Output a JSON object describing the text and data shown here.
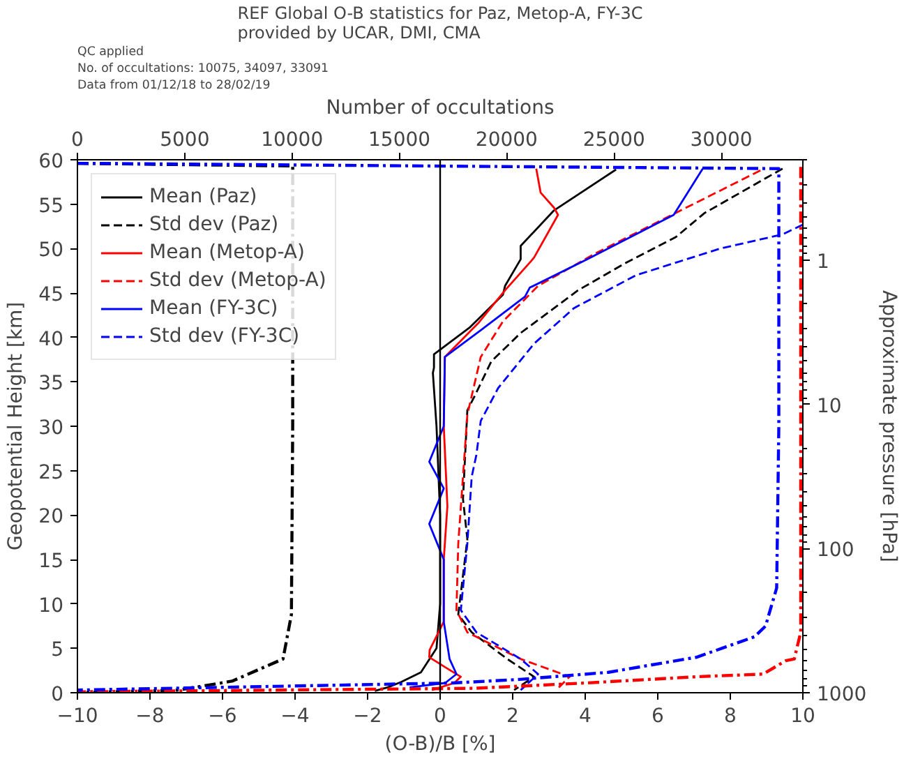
{
  "chart_data": {
    "type": "line",
    "title": "REF Global O-B statistics for Paz, Metop-A, FY-3C\nprovided by UCAR, DMI, CMA",
    "annotations": [
      "QC applied",
      "No. of occultations: 10075, 34097, 33091",
      "Data from 01/12/18 to 28/02/19"
    ],
    "xlabel": "(O-B)/B [%]",
    "ylabel": "Geopotential Height [km]",
    "x2label": "Number of occultations",
    "y2label": "Approximate pressure [hPa]",
    "xlim": [
      -10,
      10
    ],
    "xticks": [
      -10,
      -8,
      -6,
      -4,
      -2,
      0,
      2,
      4,
      6,
      8,
      10
    ],
    "ylim": [
      0,
      60
    ],
    "yticks": [
      0,
      5,
      10,
      15,
      20,
      25,
      30,
      35,
      40,
      45,
      50,
      55,
      60
    ],
    "x2lim": [
      0,
      33800
    ],
    "x2ticks": [
      0,
      5000,
      10000,
      15000,
      20000,
      25000,
      30000
    ],
    "y2lim": [
      1000,
      0.2
    ],
    "y2ticks": [
      1,
      10,
      100,
      1000
    ],
    "log": "y2",
    "grid": false,
    "legend": "top left",
    "ref_lines": [
      {
        "axis": "x",
        "value": 0,
        "label": null,
        "color": "#000000"
      }
    ],
    "series": [
      {
        "name": "Mean (Paz)",
        "color": "#000000",
        "line_style": "solid",
        "x": [
          4.85,
          3.14,
          2.22,
          2.22,
          1.79,
          1.73,
          0.81,
          -0.17,
          -0.17,
          -0.2,
          -0.1,
          0,
          0,
          -0.1,
          -0.53,
          -1.08,
          -1.45,
          -1.8
        ],
        "values": [
          58.9,
          54.3,
          50.3,
          48.8,
          45.8,
          44.8,
          41.1,
          38.1,
          36.6,
          36,
          30,
          20,
          10,
          5,
          2.3,
          1.2,
          0.6,
          0.2
        ]
      },
      {
        "name": "Std dev (Paz)",
        "color": "#000000",
        "line_style": "dashed",
        "x": [
          9.44,
          7.29,
          6.5,
          5.08,
          3.8,
          2.22,
          1.41,
          0.94,
          0.75,
          0.63,
          0.75,
          0.5,
          0.87,
          1.85,
          2.59,
          2.04
        ],
        "values": [
          59,
          54,
          51.3,
          48.3,
          45.3,
          40.5,
          37.3,
          33.3,
          31.8,
          21.8,
          17.3,
          8.8,
          6.8,
          3.8,
          1.8,
          0.3
        ]
      },
      {
        "name": "Mean (Metop-A)",
        "color": "#ff0000",
        "line_style": "solid",
        "x": [
          2.65,
          2.77,
          3.14,
          3.25,
          2.59,
          2.51,
          1.79,
          1.05,
          0.13,
          0.1,
          0.2,
          0.1,
          0.1,
          -0.29,
          -0.3,
          0.13,
          0.57,
          0.39,
          -0.23
        ],
        "values": [
          59,
          56.3,
          54.6,
          53.8,
          49,
          48.6,
          45.3,
          41.6,
          37.8,
          30,
          21,
          15,
          8,
          4.8,
          4,
          2.9,
          1.8,
          1.1,
          0.3
        ]
      },
      {
        "name": "Std dev (Metop-A)",
        "color": "#ff0000",
        "line_style": "dashed",
        "x": [
          8.83,
          6.44,
          4.3,
          2.7,
          1.73,
          1.12,
          0.75,
          0.5,
          0.45,
          0.75,
          2.22,
          3.57,
          3.2
        ],
        "values": [
          58.8,
          53.9,
          49.5,
          45.8,
          41.8,
          37.8,
          31.3,
          16.8,
          9.3,
          6.8,
          3.8,
          1.8,
          0.3
        ]
      },
      {
        "name": "Mean (FY-3C)",
        "color": "#0000ff",
        "line_style": "solid",
        "x": [
          7.24,
          6.44,
          4.06,
          2.47,
          2.34,
          1.12,
          0.13,
          0.1,
          -0.3,
          0.1,
          -0.3,
          0.1,
          0.1,
          0.26,
          0.45,
          0.14,
          -0.84
        ],
        "values": [
          59,
          53.8,
          48.8,
          45.6,
          44.6,
          40.8,
          37.8,
          30,
          26,
          23,
          19,
          15,
          8,
          3.8,
          2.1,
          1.1,
          0.6
        ]
      },
      {
        "name": "Std dev (FY-3C)",
        "color": "#0000ff",
        "line_style": "dashed",
        "x": [
          10,
          9.44,
          7.72,
          5.4,
          3.69,
          2.59,
          1.6,
          1.12,
          1.0,
          0.87,
          0.75,
          0.57,
          1.0,
          2.22,
          2.7,
          2.22
        ],
        "values": [
          52.7,
          51.6,
          50,
          47,
          43.3,
          39.3,
          34.3,
          30.6,
          26.8,
          24.3,
          16.8,
          9.3,
          6.8,
          3.8,
          2.1,
          0.3
        ]
      },
      {
        "color": "#000000",
        "line_style": "dashdot",
        "axis": "x2",
        "x": [
          0,
          10030,
          10030,
          9970,
          9580,
          7200,
          4700,
          200
        ],
        "values": [
          59.6,
          59.3,
          30,
          8.8,
          3.8,
          1.3,
          0.3,
          0
        ]
      },
      {
        "color": "#ff0000",
        "line_style": "dashdot",
        "axis": "x2",
        "x": [
          33700,
          33700,
          33700,
          33400,
          33000,
          31950,
          28850,
          23700,
          18550,
          0
        ],
        "values": [
          59.2,
          30,
          6.8,
          3.8,
          3.6,
          2.1,
          1.8,
          1.1,
          0.5,
          0.1
        ]
      },
      {
        "color": "#0000ff",
        "line_style": "dashdot",
        "axis": "x2",
        "x": [
          0,
          32680,
          32680,
          32580,
          32060,
          31550,
          28850,
          24740,
          20610,
          17520,
          0
        ],
        "values": [
          59.6,
          59,
          30,
          11.8,
          7.5,
          6.3,
          4,
          2.3,
          1.5,
          1.1,
          0.3
        ]
      }
    ]
  }
}
